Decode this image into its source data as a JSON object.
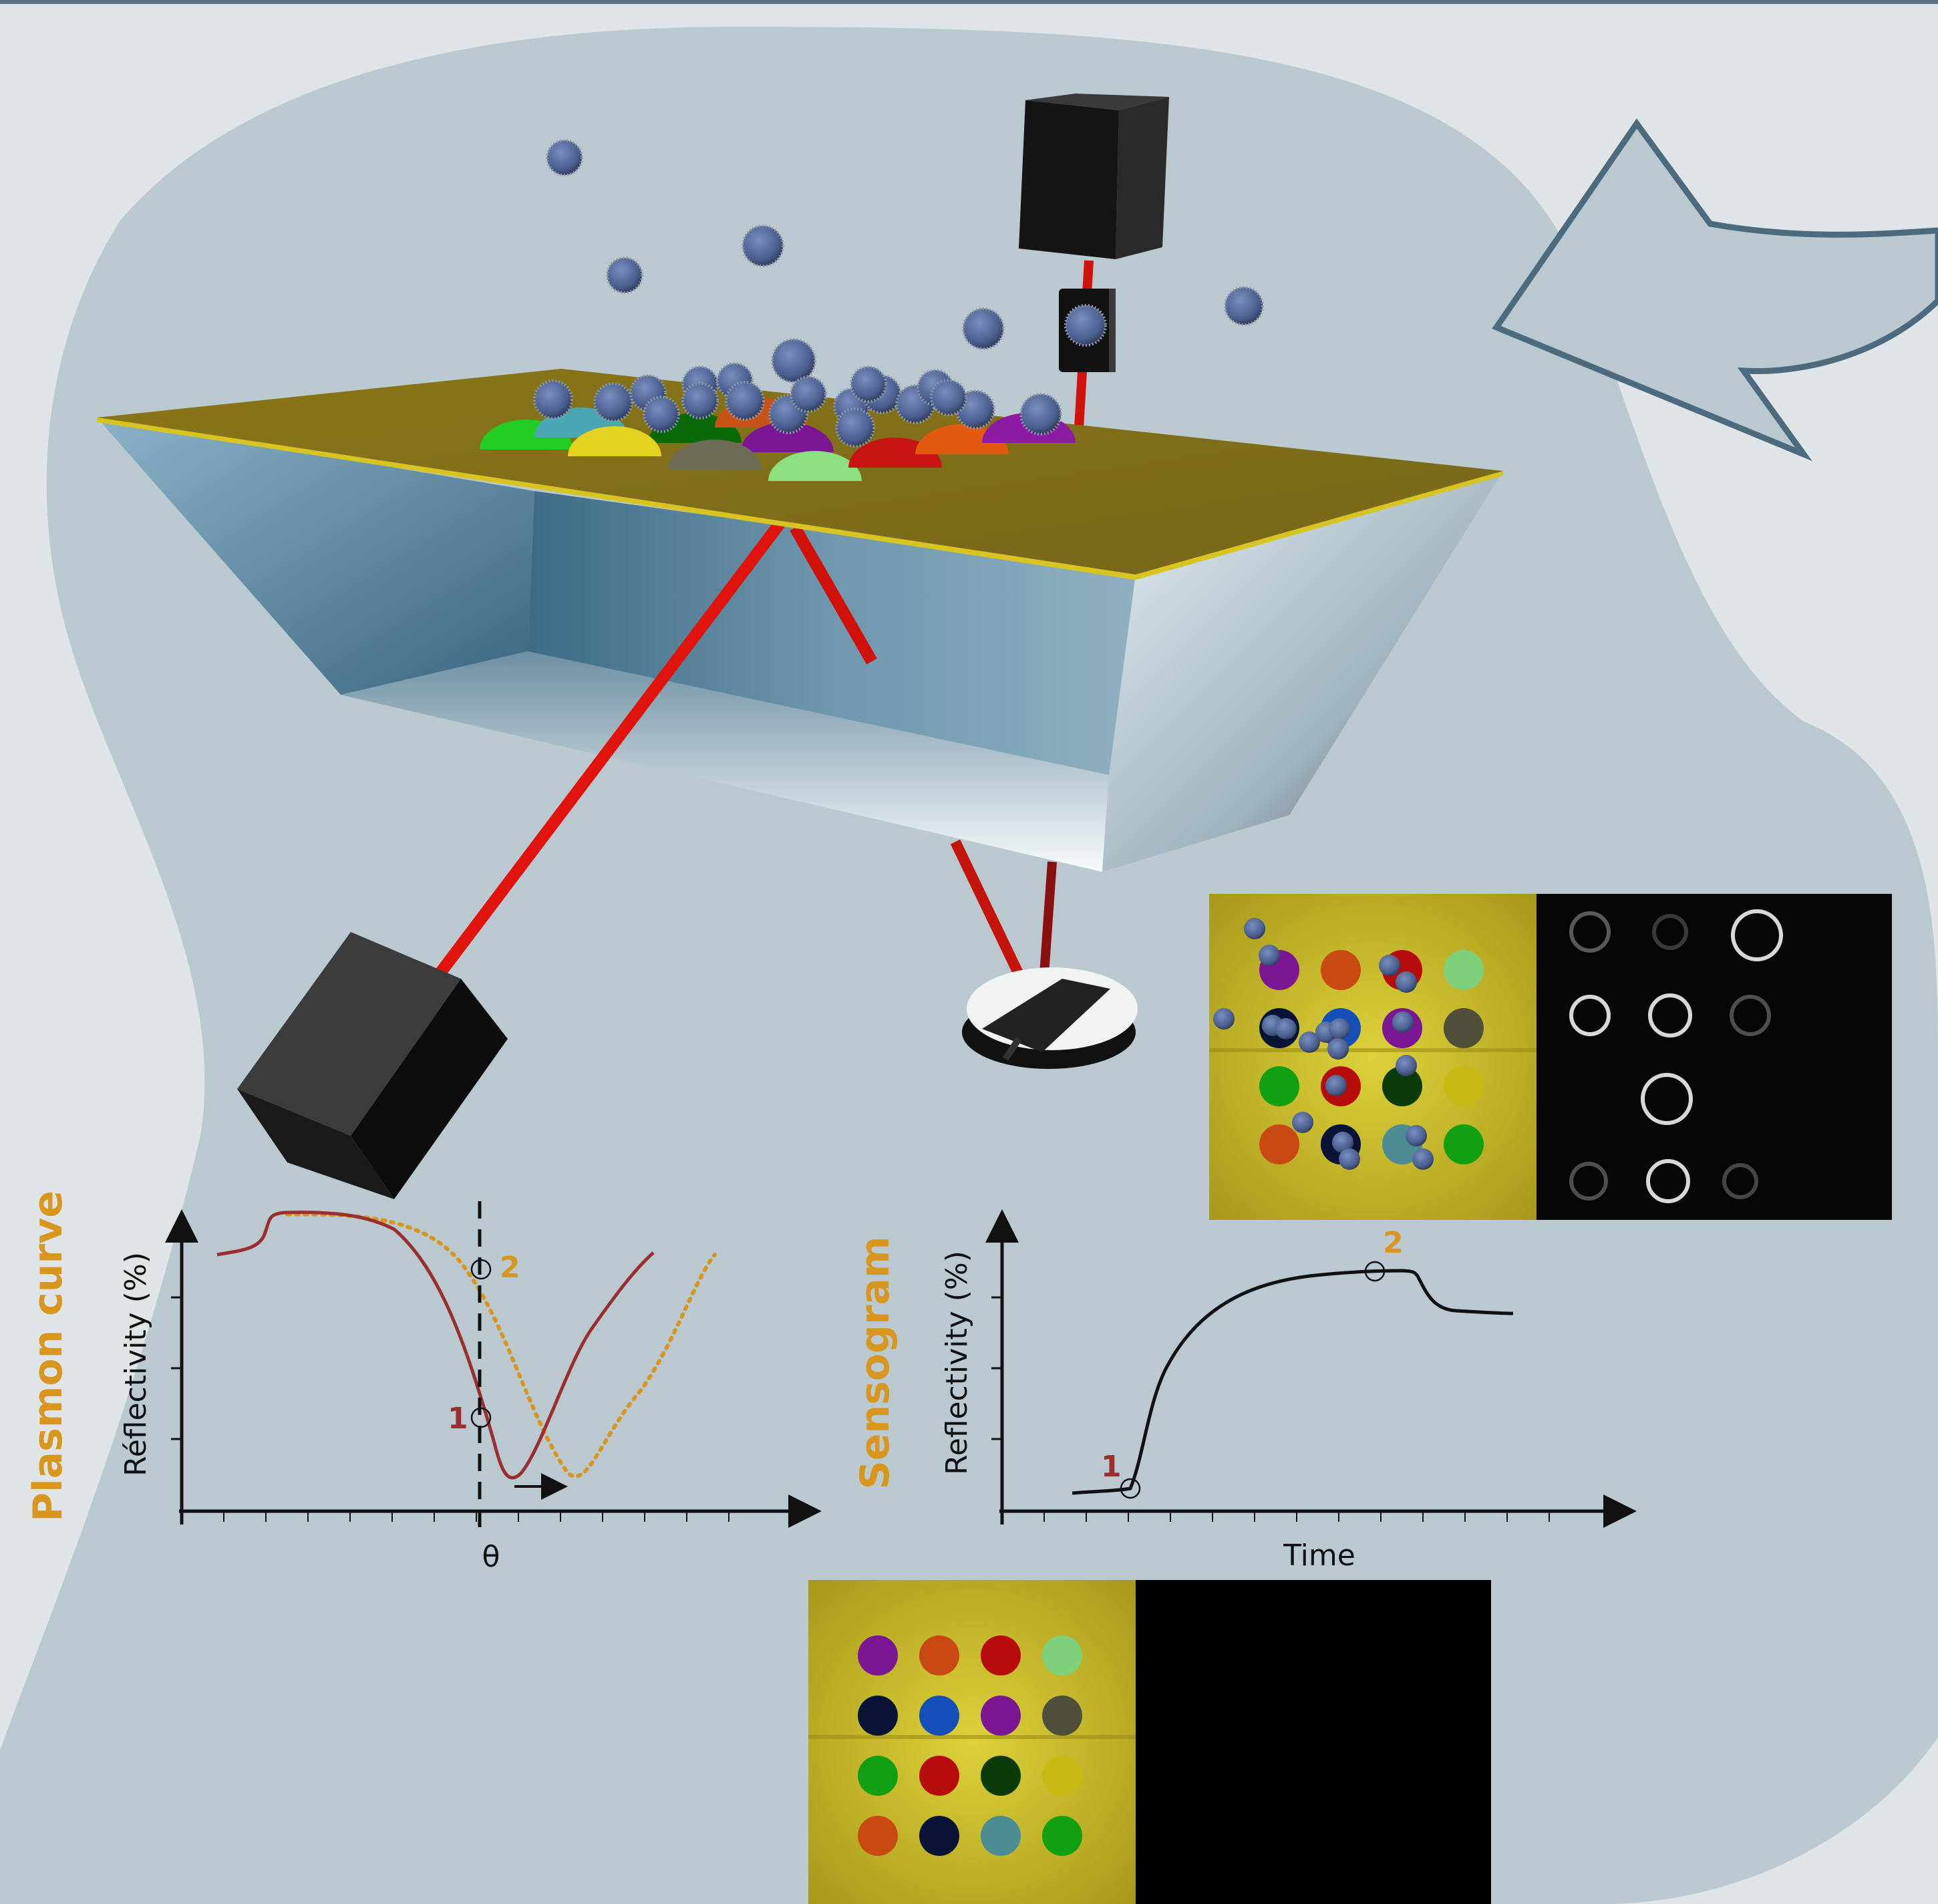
{
  "plasmon_panel": {
    "title": "Plasmon curve",
    "ylabel": "Réflectivity (%)",
    "xlabel": "θ",
    "point1": "1",
    "point2": "2"
  },
  "sensogram_panel": {
    "title": "Sensogram",
    "ylabel": "Reflectivity (%)",
    "xlabel": "Time",
    "point1": "1",
    "point2": "2"
  },
  "colors": {
    "background_blob": "#b9c9cf",
    "arrow_outline": "#4d6b7e",
    "curve_before": "#9b2f2f",
    "curve_after": "#d9961f",
    "laser": "#e0140c",
    "gold_film": "#86731a"
  },
  "spot_array_before": [
    "#7b1694",
    "#c84a12",
    "#b70c0c",
    "#7fd07a",
    "#091335",
    "#1550b8",
    "#7b1694",
    "#4f4f3c",
    "#11a011",
    "#b70c0c",
    "#0b3a0b",
    "#c8b812",
    "#c84a12",
    "#091335",
    "#4d8b95",
    "#11a011"
  ],
  "spot_array_after": [
    "#7b1694",
    "#c84a12",
    "#b70c0c",
    "#7fd07a",
    "#7b1694",
    "#4f4f3c",
    "#11a011",
    "#b70c0c",
    "#0b3a0b",
    "#c8b812",
    "#c84a12",
    "#4d8b95",
    "#11a011"
  ]
}
